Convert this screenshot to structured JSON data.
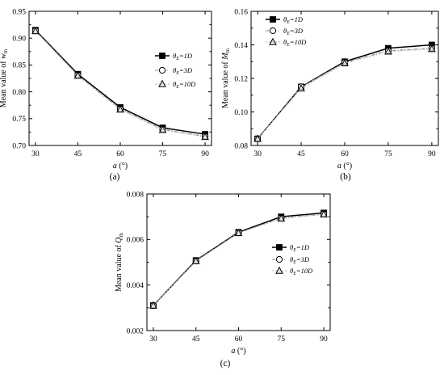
{
  "chart_data": [
    {
      "type": "line",
      "panel_label": "(a)",
      "x": [
        30,
        45,
        60,
        75,
        90
      ],
      "xticks": [
        "30",
        "45",
        "60",
        "75",
        "90"
      ],
      "xlabel_main": "a",
      "xlabel_unit": " (°)",
      "ylabel_main": "Mean value of ",
      "ylabel_sym": "w",
      "ylabel_sub": "m",
      "ylim": [
        0.7,
        0.95
      ],
      "yticks": [
        "0.70",
        "0.75",
        "0.80",
        "0.85",
        "0.90",
        "0.95"
      ],
      "series": [
        {
          "name": "θE=1D",
          "sym": "θ",
          "sub": "E",
          "rest": "=1D",
          "values": [
            0.915,
            0.833,
            0.771,
            0.733,
            0.721
          ]
        },
        {
          "name": "θE=3D",
          "sym": "θ",
          "sub": "E",
          "rest": "=3D",
          "values": [
            0.914,
            0.831,
            0.768,
            0.73,
            0.717
          ]
        },
        {
          "name": "θE=10D",
          "sym": "θ",
          "sub": "E",
          "rest": "=10D",
          "values": [
            0.913,
            0.83,
            0.767,
            0.729,
            0.716
          ]
        }
      ],
      "legend": "right"
    },
    {
      "type": "line",
      "panel_label": "(b)",
      "x": [
        30,
        45,
        60,
        75,
        90
      ],
      "xticks": [
        "30",
        "45",
        "60",
        "75",
        "90"
      ],
      "xlabel_main": "a",
      "xlabel_unit": " (°)",
      "ylabel_main": "Mean value of ",
      "ylabel_sym": "M",
      "ylabel_sub": "m",
      "ylim": [
        0.08,
        0.16
      ],
      "yticks": [
        "0.08",
        "0.10",
        "0.12",
        "0.14",
        "0.16"
      ],
      "series": [
        {
          "name": "θE=1D",
          "sym": "θ",
          "sub": "E",
          "rest": "=1D",
          "values": [
            0.084,
            0.115,
            0.13,
            0.138,
            0.14
          ]
        },
        {
          "name": "θE=3D",
          "sym": "θ",
          "sub": "E",
          "rest": "=3D",
          "values": [
            0.084,
            0.115,
            0.1295,
            0.1365,
            0.138
          ]
        },
        {
          "name": "θE=10D",
          "sym": "θ",
          "sub": "E",
          "rest": "=10D",
          "values": [
            0.084,
            0.114,
            0.129,
            0.136,
            0.1375
          ]
        }
      ],
      "legend": "top-left"
    },
    {
      "type": "line",
      "panel_label": "(c)",
      "x": [
        30,
        45,
        60,
        75,
        90
      ],
      "xticks": [
        "30",
        "45",
        "60",
        "75",
        "90"
      ],
      "xlabel_main": "a",
      "xlabel_unit": " (°)",
      "ylabel_main": "Mean value of ",
      "ylabel_sym": "Q",
      "ylabel_sub": "m",
      "ylim": [
        0.002,
        0.008
      ],
      "yticks": [
        "0.002",
        "0.004",
        "0.006",
        "0.008"
      ],
      "series": [
        {
          "name": "θE=1D",
          "sym": "θ",
          "sub": "E",
          "rest": "=1D",
          "values": [
            0.0031,
            0.00508,
            0.00632,
            0.007,
            0.00717
          ]
        },
        {
          "name": "θE=3D",
          "sym": "θ",
          "sub": "E",
          "rest": "=3D",
          "values": [
            0.0031,
            0.00506,
            0.0063,
            0.00694,
            0.00712
          ]
        },
        {
          "name": "θE=10D",
          "sym": "θ",
          "sub": "E",
          "rest": "=10D",
          "values": [
            0.0031,
            0.00505,
            0.00628,
            0.00692,
            0.0071
          ]
        }
      ],
      "legend": "right"
    }
  ]
}
